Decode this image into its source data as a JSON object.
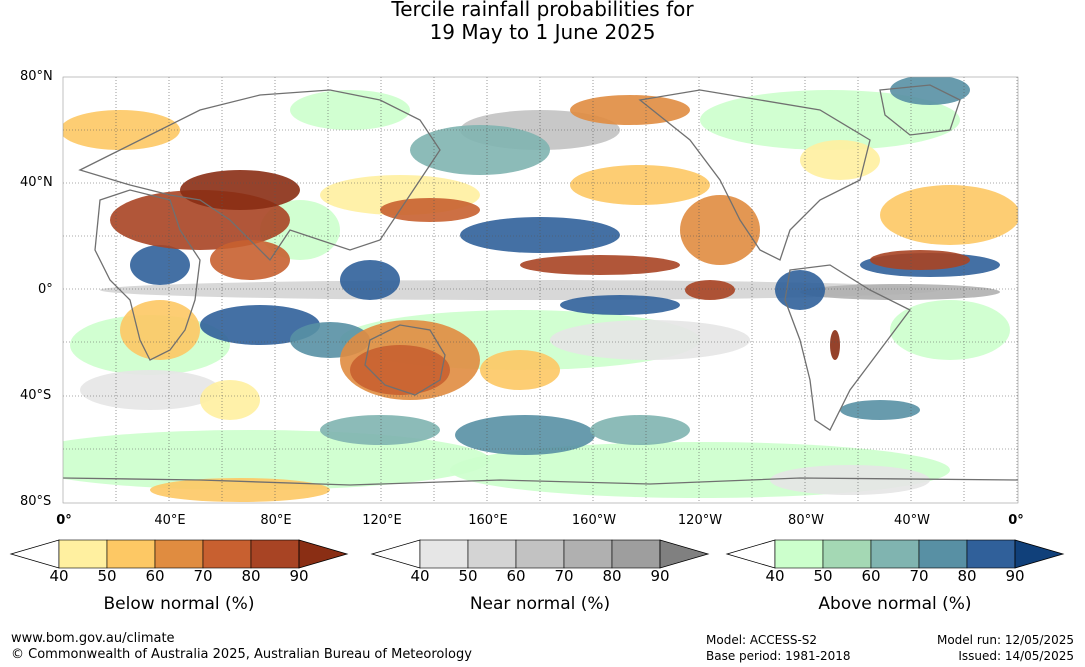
{
  "title": {
    "line1": "Tercile rainfall probabilities for",
    "line2": "19 May to 1 June 2025"
  },
  "axes": {
    "lat_labels": [
      "80°N",
      "40°N",
      "0°",
      "40°S",
      "80°S"
    ],
    "lon_labels": [
      "0°",
      "40°E",
      "80°E",
      "120°E",
      "160°E",
      "160°W",
      "120°W",
      "80°W",
      "40°W",
      "0°"
    ]
  },
  "legends": [
    {
      "name": "below",
      "title": "Below normal (%)",
      "ticks": [
        "40",
        "50",
        "60",
        "70",
        "80",
        "90"
      ],
      "colors": [
        "#fff0a0",
        "#fdc864",
        "#e08c40",
        "#c86030",
        "#a84424",
        "#8a2e14"
      ]
    },
    {
      "name": "near",
      "title": "Near normal (%)",
      "ticks": [
        "40",
        "50",
        "60",
        "70",
        "80",
        "90"
      ],
      "colors": [
        "#e6e6e6",
        "#d4d4d4",
        "#c2c2c2",
        "#b0b0b0",
        "#9e9e9e",
        "#808080"
      ]
    },
    {
      "name": "above",
      "title": "Above normal (%)",
      "ticks": [
        "40",
        "50",
        "60",
        "70",
        "80",
        "90"
      ],
      "colors": [
        "#ccffcc",
        "#a4d8b4",
        "#80b4b0",
        "#5890a4",
        "#30609a",
        "#10407a"
      ]
    }
  ],
  "footer": {
    "url": "www.bom.gov.au/climate",
    "copyright": "© Commonwealth of Australia 2025, Australian Bureau of Meteorology",
    "model": "Model: ACCESS-S2",
    "base_period": "Base period: 1981-2018",
    "model_run": "Model run: 12/05/2025",
    "issued": "Issued: 14/05/2025"
  }
}
